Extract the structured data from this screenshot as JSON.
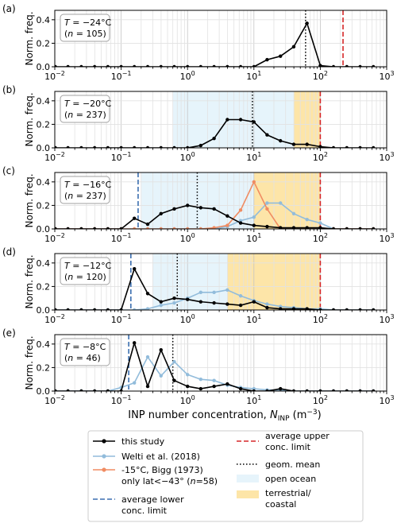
{
  "x_axis": {
    "label": "INP number concentration, ",
    "label_sym": "N",
    "label_sub": "INP",
    "label_unit": " (m",
    "label_unit_exp": "−3",
    "label_unit_end": ")",
    "ticks": [
      {
        "base": "10",
        "exp": "−2"
      },
      {
        "base": "10",
        "exp": "−1"
      },
      {
        "base": "10",
        "exp": "0"
      },
      {
        "base": "10",
        "exp": "1"
      },
      {
        "base": "10",
        "exp": "2"
      },
      {
        "base": "10",
        "exp": "3"
      }
    ]
  },
  "y_label": "Norm. freq.",
  "y_ticks": [
    "0.0",
    "0.2",
    "0.4"
  ],
  "colors": {
    "this_study": "#000000",
    "welti": "#92bcdb",
    "bigg": "#f08c62",
    "lower_limit": "#3b6fb0",
    "upper_limit": "#d62728",
    "geom_mean": "#000000",
    "open_ocean": "#e6f4fb",
    "terrestrial": "#fde5a8"
  },
  "legend": {
    "this_study": "this study",
    "welti": "Welti et al. (2018)",
    "bigg_1": "-15°C, Bigg (1973)",
    "bigg_2": "only lat<−43° (",
    "bigg_2_n": "n",
    "bigg_2_end": "=58)",
    "lower_1": "average lower",
    "lower_2": "conc. limit",
    "upper_1": "average upper",
    "upper_2": "conc. limit",
    "geom": "geom. mean",
    "open_ocean": "open ocean",
    "terr_1": "terrestrial/",
    "terr_2": "coastal"
  },
  "chart_data": [
    {
      "type": "line",
      "panel": "(a)",
      "box_line1_T": "T",
      "box_line1_val": " = −24°C",
      "box_line2_pre": "(",
      "box_line2_n": "n",
      "box_line2_val": " = 105)",
      "xscale": "log",
      "xlim": [
        0.01,
        1000
      ],
      "ylim": [
        0,
        0.48
      ],
      "grid": true,
      "open_ocean_range": null,
      "terrestrial_range": null,
      "geom_mean": 60,
      "upper_limit": 220,
      "lower_limit": null,
      "series": [
        {
          "key": "this_study",
          "x": [
            0.0102,
            0.0158,
            0.0251,
            0.0398,
            0.0631,
            0.1,
            0.158,
            0.251,
            0.398,
            0.631,
            1,
            1.58,
            2.51,
            3.98,
            6.31,
            10,
            15.8,
            25.1,
            39.8,
            63.1,
            100,
            158,
            251,
            398,
            631
          ],
          "y": [
            0,
            0,
            0,
            0,
            0,
            0,
            0,
            0,
            0,
            0,
            0,
            0,
            0,
            0,
            0,
            0,
            0.06,
            0.09,
            0.17,
            0.37,
            0.01,
            0,
            0,
            0,
            0
          ]
        }
      ]
    },
    {
      "type": "line",
      "panel": "(b)",
      "box_line1_T": "T",
      "box_line1_val": " = −20°C",
      "box_line2_pre": "(",
      "box_line2_n": "n",
      "box_line2_val": " = 237)",
      "xscale": "log",
      "xlim": [
        0.01,
        1000
      ],
      "ylim": [
        0,
        0.48
      ],
      "grid": true,
      "open_ocean_range": [
        0.6,
        40
      ],
      "terrestrial_range": [
        40,
        100
      ],
      "geom_mean": 9.5,
      "upper_limit": 100,
      "lower_limit": null,
      "series": [
        {
          "key": "this_study",
          "x": [
            0.0102,
            0.0158,
            0.0251,
            0.0398,
            0.0631,
            0.1,
            0.158,
            0.251,
            0.398,
            0.631,
            1,
            1.58,
            2.51,
            3.98,
            6.31,
            10,
            15.8,
            25.1,
            39.8,
            63.1,
            100,
            158,
            251,
            398,
            631
          ],
          "y": [
            0,
            0,
            0,
            0,
            0,
            0,
            0,
            0,
            0,
            0,
            0,
            0.02,
            0.08,
            0.24,
            0.24,
            0.22,
            0.11,
            0.06,
            0.03,
            0.03,
            0.01,
            0,
            0,
            0,
            0
          ]
        }
      ]
    },
    {
      "type": "line",
      "panel": "(c)",
      "box_line1_T": "T",
      "box_line1_val": " = −16°C",
      "box_line2_pre": "(",
      "box_line2_n": "n",
      "box_line2_val": " = 237)",
      "xscale": "log",
      "xlim": [
        0.01,
        1000
      ],
      "ylim": [
        0,
        0.48
      ],
      "grid": true,
      "open_ocean_range": [
        0.2,
        10
      ],
      "terrestrial_range": [
        10,
        100
      ],
      "geom_mean": 1.4,
      "upper_limit": 100,
      "lower_limit": 0.18,
      "series": [
        {
          "key": "this_study",
          "x": [
            0.0102,
            0.0158,
            0.0251,
            0.0398,
            0.0631,
            0.1,
            0.158,
            0.251,
            0.398,
            0.631,
            1,
            1.58,
            2.51,
            3.98,
            6.31,
            10,
            15.8,
            25.1,
            39.8,
            63.1,
            100,
            158,
            251,
            398,
            631
          ],
          "y": [
            0,
            0,
            0,
            0,
            0,
            0,
            0.09,
            0.04,
            0.13,
            0.17,
            0.2,
            0.18,
            0.17,
            0.11,
            0.05,
            0.03,
            0.02,
            0.01,
            0.01,
            0.01,
            0.01,
            0,
            0,
            0,
            0
          ]
        },
        {
          "key": "welti",
          "x": [
            0.0102,
            0.0158,
            0.0251,
            0.0398,
            0.0631,
            0.1,
            0.158,
            0.251,
            0.398,
            0.631,
            1,
            1.58,
            2.51,
            3.98,
            6.31,
            10,
            15.8,
            25.1,
            39.8,
            63.1,
            100,
            158,
            251,
            398,
            631
          ],
          "y": [
            0,
            0,
            0,
            0,
            0,
            0,
            0,
            0,
            0,
            0,
            0,
            0,
            0,
            0.02,
            0.07,
            0.1,
            0.22,
            0.22,
            0.13,
            0.08,
            0.05,
            0,
            0,
            0,
            0
          ]
        },
        {
          "key": "bigg",
          "x": [
            0.0102,
            0.0158,
            0.0251,
            0.0398,
            0.0631,
            0.1,
            0.158,
            0.251,
            0.398,
            0.631,
            1,
            1.58,
            2.51,
            3.98,
            6.31,
            10,
            15.8,
            25.1,
            39.8,
            63.1,
            100,
            158,
            251,
            398,
            631
          ],
          "y": [
            0,
            0,
            0,
            0,
            0,
            0,
            0,
            0,
            0,
            0,
            0,
            0,
            0.01,
            0.03,
            0.16,
            0.4,
            0.17,
            0,
            0,
            0,
            0,
            0,
            0,
            0,
            0
          ]
        }
      ]
    },
    {
      "type": "line",
      "panel": "(d)",
      "box_line1_T": "T",
      "box_line1_val": " = −12°C",
      "box_line2_pre": "(",
      "box_line2_n": "n",
      "box_line2_val": " = 120)",
      "xscale": "log",
      "xlim": [
        0.01,
        1000
      ],
      "ylim": [
        0,
        0.48
      ],
      "grid": true,
      "open_ocean_range": [
        0.3,
        4
      ],
      "terrestrial_range": [
        4,
        100
      ],
      "geom_mean": 0.7,
      "upper_limit": 100,
      "lower_limit": 0.14,
      "series": [
        {
          "key": "this_study",
          "x": [
            0.0102,
            0.0158,
            0.0251,
            0.0398,
            0.0631,
            0.1,
            0.158,
            0.251,
            0.398,
            0.631,
            1,
            1.58,
            2.51,
            3.98,
            6.31,
            10,
            15.8,
            25.1,
            39.8,
            63.1,
            100,
            158,
            251,
            398,
            631
          ],
          "y": [
            0,
            0,
            0,
            0,
            0,
            0,
            0.35,
            0.14,
            0.07,
            0.1,
            0.09,
            0.07,
            0.06,
            0.05,
            0.04,
            0.07,
            0.02,
            0.01,
            0.01,
            0.01,
            0,
            0,
            0,
            0,
            0
          ]
        },
        {
          "key": "welti",
          "x": [
            0.0102,
            0.0158,
            0.0251,
            0.0398,
            0.0631,
            0.1,
            0.158,
            0.251,
            0.398,
            0.631,
            1,
            1.58,
            2.51,
            3.98,
            6.31,
            10,
            15.8,
            25.1,
            39.8,
            63.1,
            100,
            158,
            251,
            398,
            631
          ],
          "y": [
            0,
            0,
            0,
            0,
            0,
            0,
            0,
            0.01,
            0.04,
            0.06,
            0.1,
            0.15,
            0.15,
            0.17,
            0.12,
            0.08,
            0.05,
            0.03,
            0.02,
            0.01,
            0.01,
            0,
            0,
            0,
            0
          ]
        }
      ]
    },
    {
      "type": "line",
      "panel": "(e)",
      "box_line1_T": "T",
      "box_line1_val": " = −8°C",
      "box_line2_pre": "(",
      "box_line2_n": "n",
      "box_line2_val": " = 46)",
      "xscale": "log",
      "xlim": [
        0.01,
        1000
      ],
      "ylim": [
        0,
        0.48
      ],
      "grid": true,
      "open_ocean_range": null,
      "terrestrial_range": null,
      "geom_mean": 0.6,
      "upper_limit": null,
      "lower_limit": 0.13,
      "series": [
        {
          "key": "this_study",
          "x": [
            0.0102,
            0.0158,
            0.0251,
            0.0398,
            0.0631,
            0.1,
            0.158,
            0.251,
            0.398,
            0.631,
            1,
            1.58,
            2.51,
            3.98,
            6.31,
            10,
            15.8,
            25.1,
            39.8,
            63.1,
            100,
            158,
            251,
            398,
            631
          ],
          "y": [
            0,
            0,
            0,
            0,
            0,
            0,
            0.41,
            0.04,
            0.35,
            0.09,
            0.04,
            0.02,
            0.04,
            0.06,
            0.02,
            0,
            0,
            0.02,
            0,
            0,
            0,
            0,
            0,
            0,
            0
          ]
        },
        {
          "key": "welti",
          "x": [
            0.0102,
            0.0158,
            0.0251,
            0.0398,
            0.0631,
            0.1,
            0.158,
            0.251,
            0.398,
            0.631,
            1,
            1.58,
            2.51,
            3.98,
            6.31,
            10,
            15.8,
            25.1,
            39.8,
            63.1,
            100,
            158,
            251,
            398,
            631
          ],
          "y": [
            0,
            0,
            0,
            0,
            0,
            0.03,
            0.07,
            0.29,
            0.13,
            0.25,
            0.14,
            0.1,
            0.09,
            0.05,
            0.03,
            0.02,
            0.01,
            0.01,
            0,
            0,
            0,
            0,
            0,
            0,
            0
          ]
        }
      ]
    }
  ]
}
